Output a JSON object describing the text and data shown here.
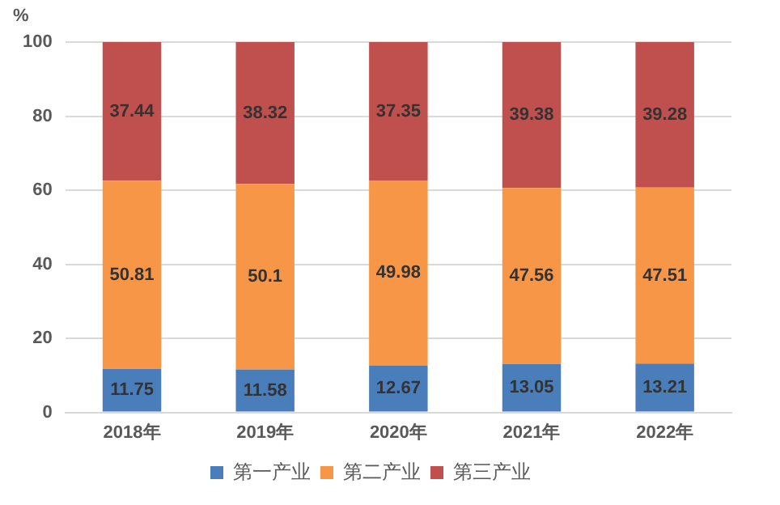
{
  "chart_data": {
    "type": "bar",
    "stacked": true,
    "ylabel": "%",
    "categories": [
      "2018年",
      "2019年",
      "2020年",
      "2021年",
      "2022年"
    ],
    "series": [
      {
        "name": "第一产业",
        "color": "#4a7ebb",
        "values": [
          11.75,
          11.58,
          12.67,
          13.05,
          13.21
        ]
      },
      {
        "name": "第二产业",
        "color": "#f79646",
        "values": [
          50.81,
          50.1,
          49.98,
          47.56,
          47.51
        ]
      },
      {
        "name": "第三产业",
        "color": "#c0504d",
        "values": [
          37.44,
          38.32,
          37.35,
          39.38,
          39.28
        ]
      }
    ],
    "ylim": [
      0,
      100
    ],
    "yticks": [
      0,
      20,
      40,
      60,
      80,
      100
    ],
    "grid": "y",
    "legend": "bottom",
    "data_labels": true
  }
}
